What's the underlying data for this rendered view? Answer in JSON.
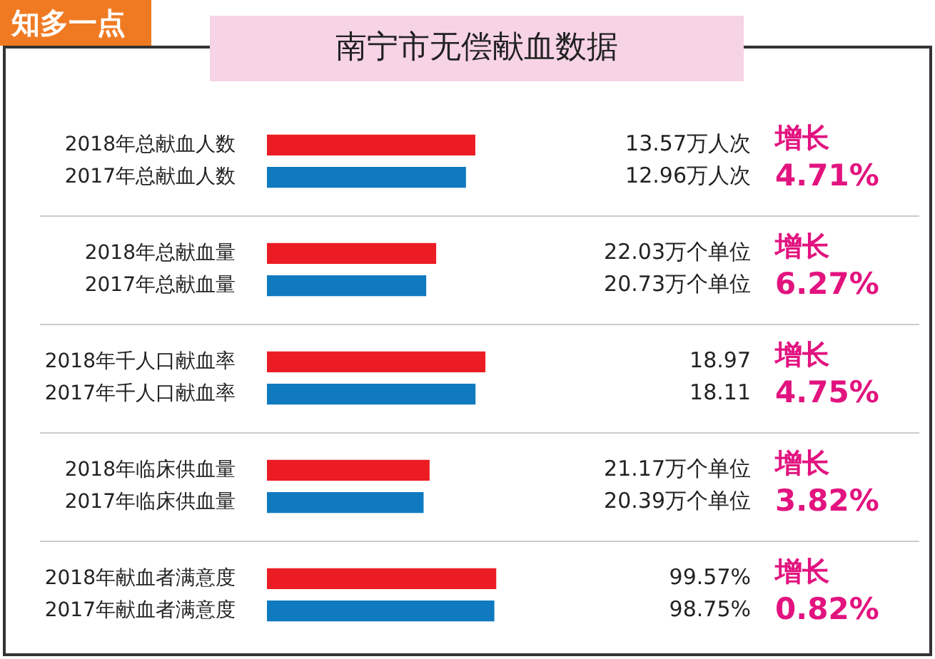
{
  "chart_data": [
    {
      "type": "other",
      "title": "南宁市无偿献血数据",
      "annotations": [
        "知多一点"
      ]
    },
    {
      "type": "bar",
      "orientation": "horizontal",
      "categories": [
        "2018年总献血人数",
        "2017年总献血人数"
      ],
      "values": [
        13.57,
        12.96
      ],
      "colors": [
        "#ec1c24",
        "#0f7ac0"
      ],
      "value_labels": [
        "13.57万人次",
        "12.96万人次"
      ],
      "annotations": [
        "增长",
        "4.71%"
      ]
    },
    {
      "type": "bar",
      "orientation": "horizontal",
      "categories": [
        "2018年总献血量",
        "2017年总献血量"
      ],
      "values": [
        22.03,
        20.73
      ],
      "colors": [
        "#ec1c24",
        "#0f7ac0"
      ],
      "value_labels": [
        "22.03万个单位",
        "20.73万个单位"
      ],
      "annotations": [
        "增长",
        "6.27%"
      ]
    },
    {
      "type": "bar",
      "orientation": "horizontal",
      "categories": [
        "2018年千人口献血率",
        "2017年千人口献血率"
      ],
      "values": [
        18.97,
        18.11
      ],
      "colors": [
        "#ec1c24",
        "#0f7ac0"
      ],
      "value_labels": [
        "18.97",
        "18.11"
      ],
      "annotations": [
        "增长",
        "4.75%"
      ]
    },
    {
      "type": "bar",
      "orientation": "horizontal",
      "categories": [
        "2018年临床供血量",
        "2017年临床供血量"
      ],
      "values": [
        21.17,
        20.39
      ],
      "colors": [
        "#ec1c24",
        "#0f7ac0"
      ],
      "value_labels": [
        "21.17万个单位",
        "20.39万个单位"
      ],
      "annotations": [
        "增长",
        "3.82%"
      ]
    },
    {
      "type": "bar",
      "orientation": "horizontal",
      "categories": [
        "2018年献血者满意度",
        "2017年献血者满意度"
      ],
      "values": [
        99.57,
        98.75
      ],
      "colors": [
        "#ec1c24",
        "#0f7ac0"
      ],
      "value_labels": [
        "99.57%",
        "98.75%"
      ],
      "annotations": [
        "增长",
        "0.82%"
      ]
    }
  ]
}
